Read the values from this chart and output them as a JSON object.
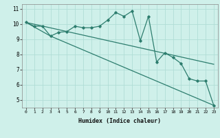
{
  "title": "",
  "xlabel": "Humidex (Indice chaleur)",
  "ylabel": "",
  "bg_color": "#cff0ea",
  "line_color": "#2d7d6e",
  "grid_color": "#b0ddd6",
  "xlim": [
    -0.5,
    23.5
  ],
  "ylim": [
    4.5,
    11.3
  ],
  "xticks": [
    0,
    1,
    2,
    3,
    4,
    5,
    6,
    7,
    8,
    9,
    10,
    11,
    12,
    13,
    14,
    15,
    16,
    17,
    18,
    19,
    20,
    21,
    22,
    23
  ],
  "yticks": [
    5,
    6,
    7,
    8,
    9,
    10,
    11
  ],
  "line1_x": [
    0,
    1,
    2,
    3,
    4,
    5,
    6,
    7,
    8,
    9,
    10,
    11,
    12,
    13,
    14,
    15,
    16,
    17,
    18,
    19,
    20,
    21,
    22,
    23
  ],
  "line1_y": [
    10.1,
    9.85,
    9.85,
    9.2,
    9.45,
    9.5,
    9.85,
    9.75,
    9.75,
    9.85,
    10.25,
    10.75,
    10.5,
    10.85,
    8.9,
    10.5,
    7.5,
    8.1,
    7.8,
    7.4,
    6.4,
    6.25,
    6.25,
    4.65
  ],
  "line2_x": [
    0,
    23
  ],
  "line2_y": [
    10.1,
    7.35
  ],
  "line3_x": [
    0,
    3,
    23
  ],
  "line3_y": [
    10.1,
    9.2,
    4.65
  ],
  "marker": "D",
  "markersize": 1.8,
  "linewidth": 0.9
}
